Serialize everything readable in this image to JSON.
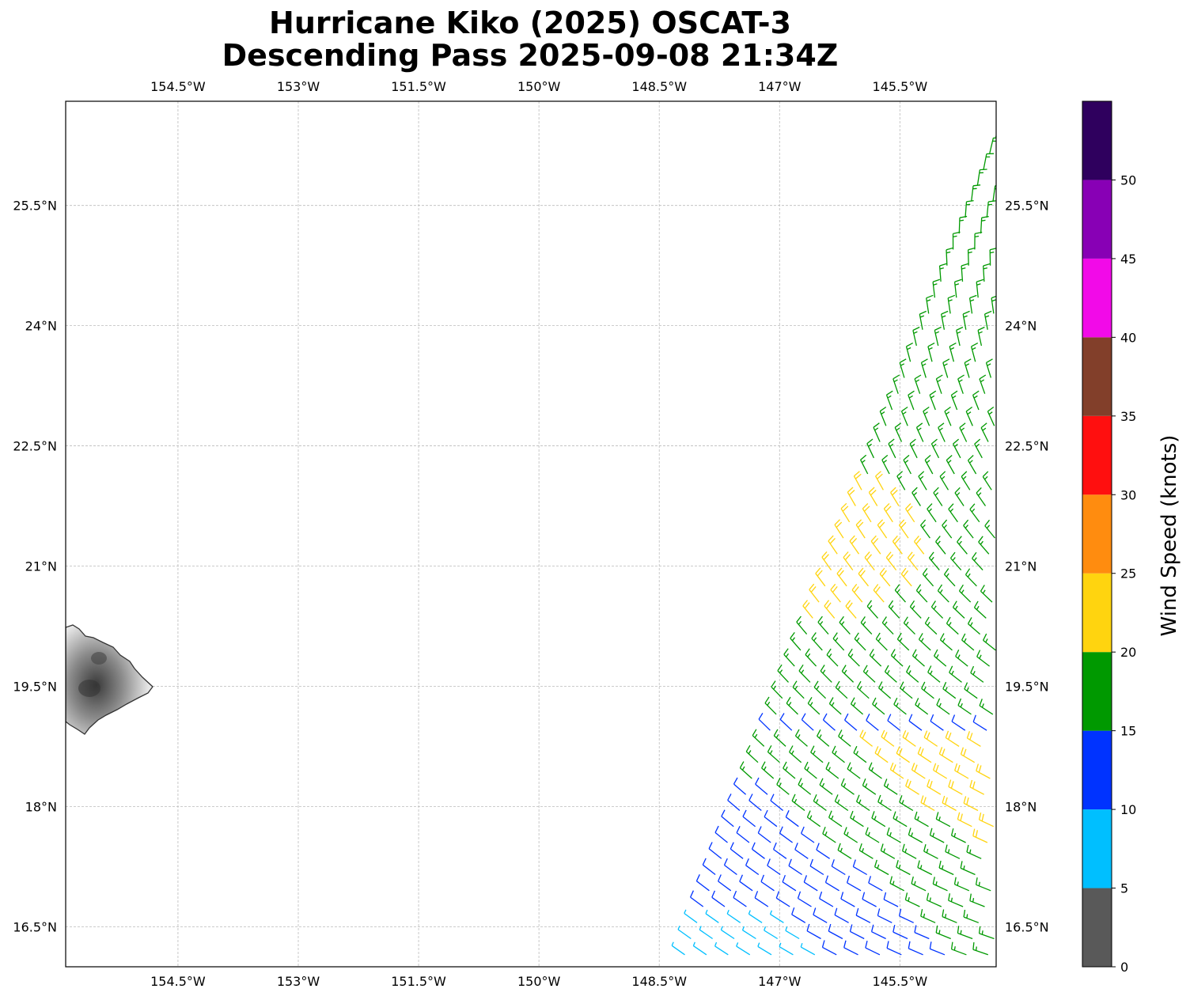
{
  "title": {
    "line1": "Hurricane Kiko (2025) OSCAT-3",
    "line2": "Descending Pass 2025-09-08 21:34Z"
  },
  "map": {
    "lon_range": [
      -155.9,
      -144.3
    ],
    "lat_range": [
      16.0,
      26.8
    ],
    "lon_ticks": [
      {
        "value": -154.5,
        "label": "154.5°W"
      },
      {
        "value": -153.0,
        "label": "153°W"
      },
      {
        "value": -151.5,
        "label": "151.5°W"
      },
      {
        "value": -150.0,
        "label": "150°W"
      },
      {
        "value": -148.5,
        "label": "148.5°W"
      },
      {
        "value": -147.0,
        "label": "147°W"
      },
      {
        "value": -145.5,
        "label": "145.5°W"
      }
    ],
    "lat_ticks": [
      {
        "value": 25.5,
        "label": "25.5°N"
      },
      {
        "value": 24.0,
        "label": "24°N"
      },
      {
        "value": 22.5,
        "label": "22.5°N"
      },
      {
        "value": 21.0,
        "label": "21°N"
      },
      {
        "value": 19.5,
        "label": "19.5°N"
      },
      {
        "value": 18.0,
        "label": "18°N"
      },
      {
        "value": 16.5,
        "label": "16.5°N"
      }
    ],
    "gridlines": true,
    "land": "Island of Hawaii",
    "wind_field": "scatterometer wind barbs along swath",
    "colors": {
      "land_fill": "#9a9a9a",
      "coast": "#333333",
      "grid": "#bbbbbb"
    }
  },
  "colorbar": {
    "title": "Wind Speed (knots)",
    "ticks": [
      {
        "value": 0,
        "label": "0"
      },
      {
        "value": 5,
        "label": "5"
      },
      {
        "value": 10,
        "label": "10"
      },
      {
        "value": 15,
        "label": "15"
      },
      {
        "value": 20,
        "label": "20"
      },
      {
        "value": 25,
        "label": "25"
      },
      {
        "value": 30,
        "label": "30"
      },
      {
        "value": 35,
        "label": "35"
      },
      {
        "value": 40,
        "label": "40"
      },
      {
        "value": 45,
        "label": "45"
      },
      {
        "value": 50,
        "label": "50"
      }
    ],
    "range": [
      0,
      55
    ],
    "bins": [
      {
        "min": 0,
        "max": 5,
        "color": "#595959"
      },
      {
        "min": 5,
        "max": 10,
        "color": "#00bfff"
      },
      {
        "min": 10,
        "max": 15,
        "color": "#0033ff"
      },
      {
        "min": 15,
        "max": 20,
        "color": "#009900"
      },
      {
        "min": 20,
        "max": 25,
        "color": "#ffd40f"
      },
      {
        "min": 25,
        "max": 30,
        "color": "#ff8c0f"
      },
      {
        "min": 30,
        "max": 35,
        "color": "#ff0f0f"
      },
      {
        "min": 35,
        "max": 40,
        "color": "#823f2a"
      },
      {
        "min": 40,
        "max": 45,
        "color": "#f20ae8"
      },
      {
        "min": 45,
        "max": 50,
        "color": "#8800b5"
      },
      {
        "min": 50,
        "max": 55,
        "color": "#2f005e"
      }
    ]
  }
}
